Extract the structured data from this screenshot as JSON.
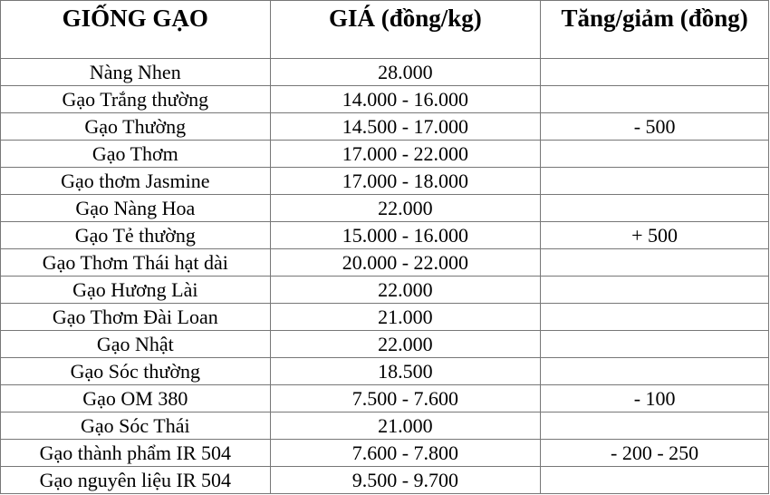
{
  "headers": [
    "GIỐNG GẠO",
    "GIÁ (đồng/kg)",
    "Tăng/giảm (đồng)"
  ],
  "rows": [
    {
      "variety": "Nàng Nhen",
      "price": "28.000",
      "change": ""
    },
    {
      "variety": "Gạo Trắng thường",
      "price": "14.000 - 16.000",
      "change": ""
    },
    {
      "variety": "Gạo Thường",
      "price": "14.500 - 17.000",
      "change": "- 500"
    },
    {
      "variety": "Gạo Thơm",
      "price": "17.000 - 22.000",
      "change": ""
    },
    {
      "variety": "Gạo thơm Jasmine",
      "price": "17.000 - 18.000",
      "change": ""
    },
    {
      "variety": "Gạo Nàng Hoa",
      "price": "22.000",
      "change": ""
    },
    {
      "variety": "Gạo Tẻ thường",
      "price": "15.000 - 16.000",
      "change": "+ 500"
    },
    {
      "variety": "Gạo Thơm Thái hạt dài",
      "price": "20.000 - 22.000",
      "change": ""
    },
    {
      "variety": "Gạo Hương Lài",
      "price": "22.000",
      "change": ""
    },
    {
      "variety": "Gạo Thơm Đài Loan",
      "price": "21.000",
      "change": ""
    },
    {
      "variety": "Gạo Nhật",
      "price": "22.000",
      "change": ""
    },
    {
      "variety": "Gạo Sóc thường",
      "price": "18.500",
      "change": ""
    },
    {
      "variety": "Gạo OM 380",
      "price": "7.500 - 7.600",
      "change": "- 100"
    },
    {
      "variety": "Gạo Sóc Thái",
      "price": "21.000",
      "change": ""
    },
    {
      "variety": "Gạo thành phẩm IR 504",
      "price": "7.600 - 7.800",
      "change": "- 200 - 250"
    },
    {
      "variety": "Gạo nguyên liệu IR 504",
      "price": "9.500 - 9.700",
      "change": ""
    }
  ]
}
